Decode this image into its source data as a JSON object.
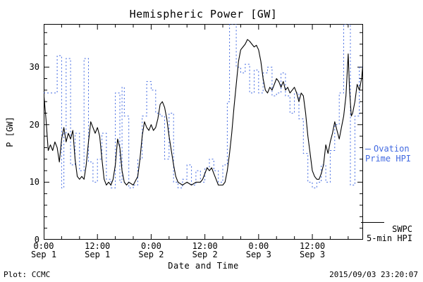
{
  "chart_data": {
    "type": "line",
    "title": "Hemispheric Power [GW]",
    "xlabel": "Date and Time",
    "ylabel": "P [GW]",
    "xlim_hours": [
      0,
      71.33
    ],
    "ylim": [
      0,
      37.5
    ],
    "x_minor_hours": 4,
    "y_minor": 2,
    "grid": false,
    "legend_position": "right-outside",
    "x_ticks": [
      {
        "hour": 0,
        "time": "0:00",
        "date": "Sep 1"
      },
      {
        "hour": 12,
        "time": "12:00",
        "date": "Sep 1"
      },
      {
        "hour": 24,
        "time": "0:00",
        "date": "Sep 2"
      },
      {
        "hour": 36,
        "time": "12:00",
        "date": "Sep 2"
      },
      {
        "hour": 48,
        "time": "0:00",
        "date": "Sep 3"
      },
      {
        "hour": 60,
        "time": "12:00",
        "date": "Sep 3"
      }
    ],
    "y_ticks": [
      0,
      10,
      20,
      30
    ],
    "series": [
      {
        "name": "Ovation Prime HPI",
        "style": "dotted-step",
        "color": "#4169E1",
        "x": [
          0,
          3,
          4,
          4.5,
          5,
          6,
          7,
          8,
          9,
          10,
          11,
          12,
          13,
          14,
          15,
          16,
          17,
          17.5,
          18,
          19,
          20,
          21,
          22,
          23,
          24,
          25,
          26,
          27,
          28,
          29,
          30,
          31,
          32,
          33,
          34,
          35,
          36,
          37,
          38,
          39,
          40,
          41,
          41.5,
          43,
          44,
          45,
          46,
          47,
          48,
          49,
          50,
          51,
          52,
          53,
          54,
          55,
          56,
          57,
          58,
          59,
          60,
          61,
          62,
          63,
          64,
          65,
          66,
          67,
          68.5,
          69.5,
          70.5,
          71.3
        ],
        "y": [
          25.5,
          32,
          9,
          18.5,
          31.5,
          13,
          18.5,
          12,
          31.5,
          13.5,
          10,
          14,
          18.5,
          10.5,
          9,
          25.5,
          10,
          26.5,
          21.5,
          9,
          9.5,
          14,
          21.5,
          27.5,
          26,
          22,
          21.5,
          14,
          22,
          10,
          9,
          10.5,
          13,
          9.5,
          12,
          10,
          12.5,
          14,
          12,
          10,
          13,
          24,
          37.5,
          30,
          29,
          30.5,
          25.5,
          29.5,
          25.5,
          29,
          30,
          25,
          25.5,
          29,
          25,
          22,
          25.5,
          21,
          15,
          10,
          9,
          10,
          13,
          10,
          15.5,
          20,
          25.5,
          37.5,
          9.5,
          21.5,
          30,
          30
        ]
      },
      {
        "name": "SWPC 5-min HPI",
        "style": "solid",
        "color": "#000000",
        "x": [
          0,
          0.5,
          1,
          1.5,
          2,
          2.5,
          3,
          3.5,
          4,
          4.5,
          5,
          5.5,
          6,
          6.5,
          7,
          7.5,
          8,
          8.5,
          9,
          9.5,
          10,
          10.5,
          11,
          11.5,
          12,
          12.5,
          13,
          13.5,
          14,
          14.5,
          15,
          15.5,
          16,
          16.5,
          17,
          17.5,
          18,
          18.5,
          19,
          20,
          21,
          21.5,
          22,
          22.5,
          23,
          23.5,
          24,
          24.5,
          25,
          25.5,
          26,
          26.5,
          27,
          27.5,
          28,
          28.5,
          29,
          29.5,
          30,
          31,
          32,
          33,
          34,
          35,
          35.5,
          36,
          36.5,
          37,
          37.5,
          38,
          38.5,
          39,
          40,
          40.5,
          41,
          41.5,
          42,
          42.5,
          43,
          43.5,
          44,
          44.5,
          45,
          45.5,
          46,
          46.5,
          47,
          47.5,
          48,
          48.5,
          49,
          49.5,
          50,
          50.5,
          51,
          51.5,
          52,
          52.5,
          53,
          53.5,
          54,
          54.5,
          55,
          55.5,
          56,
          56.5,
          57,
          57.5,
          58,
          58.5,
          59,
          59.5,
          60,
          60.5,
          61,
          61.5,
          62,
          62.5,
          63,
          63.5,
          64,
          64.5,
          65,
          65.5,
          66,
          66.5,
          67,
          67.5,
          68,
          68.3,
          68.7,
          69,
          69.5,
          70,
          70.5,
          71,
          71.3
        ],
        "y": [
          25.5,
          21,
          15.5,
          16.5,
          15.5,
          17,
          16,
          13.5,
          17.5,
          19.5,
          17,
          18.5,
          17.5,
          19,
          14,
          11,
          10.5,
          11,
          10.5,
          13,
          17,
          20.5,
          19.5,
          18.5,
          19.5,
          18,
          14,
          10.5,
          9.5,
          10,
          9.5,
          10.5,
          13,
          17.5,
          16,
          12,
          10,
          9.5,
          10,
          9.5,
          11,
          14,
          18,
          20.5,
          19.5,
          19,
          20,
          19,
          19.5,
          21,
          23.5,
          24,
          23,
          21,
          18,
          15.5,
          13,
          11,
          10,
          9.5,
          10,
          9.5,
          10,
          10,
          10.5,
          11.5,
          12.5,
          12,
          12.5,
          11.5,
          10.5,
          9.5,
          9.5,
          10,
          12,
          15,
          18.5,
          23,
          27,
          31,
          33,
          33.5,
          34,
          34.8,
          34.5,
          34,
          33.5,
          33.8,
          33,
          31,
          28,
          26,
          25.5,
          26.5,
          26,
          27,
          28,
          27.5,
          26.5,
          27.5,
          26,
          26.5,
          25.5,
          26,
          26.5,
          25.5,
          24,
          25.5,
          25,
          22,
          18,
          15,
          12,
          11,
          10.5,
          10.5,
          11.5,
          13,
          16.5,
          15,
          17,
          18.5,
          20.5,
          19,
          17.5,
          19.5,
          21.5,
          25,
          32.3,
          26,
          21.5,
          22,
          24,
          27,
          26,
          28,
          30.5
        ]
      }
    ]
  },
  "legend": {
    "ovation_line1": "Ovation",
    "ovation_line2": "Prime HPI",
    "swpc_line1": "SWPC",
    "swpc_line2": "5-min HPI"
  },
  "footer": {
    "left": "Plot: CCMC",
    "right": "2015/09/03 23:20:07"
  }
}
